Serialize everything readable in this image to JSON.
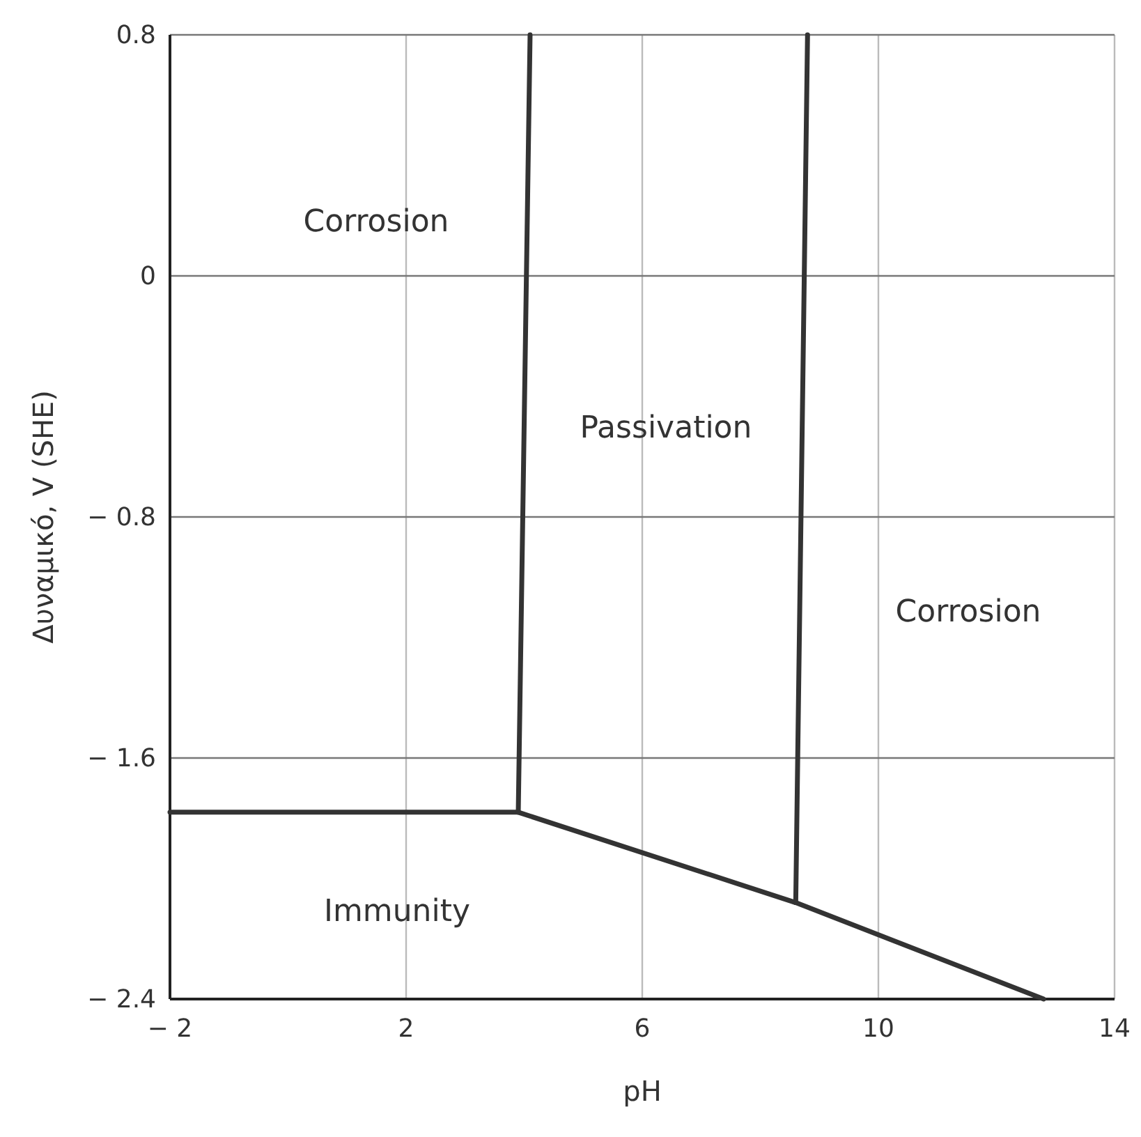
{
  "chart_data": {
    "type": "line",
    "xlabel": "pH",
    "ylabel": "Δυναμικό, V (SHE)",
    "xlim": [
      -2,
      14
    ],
    "ylim": [
      -2.4,
      0.8
    ],
    "xticks": [
      {
        "value": -2,
        "label": "− 2"
      },
      2,
      6,
      10,
      14
    ],
    "yticks": [
      {
        "value": -2.4,
        "label": "− 2.4"
      },
      {
        "value": -1.6,
        "label": "− 1.6"
      },
      {
        "value": -0.8,
        "label": "− 0.8"
      },
      0,
      0.8
    ],
    "grid": true,
    "marker": "none",
    "line_style": "solid",
    "series": [
      {
        "color": "#333333",
        "x": [
          -2,
          3.9,
          8.6,
          12.8
        ],
        "values": [
          -1.78,
          -1.78,
          -2.08,
          -2.4
        ]
      },
      {
        "color": "#333333",
        "x": [
          3.9,
          4.1
        ],
        "values": [
          -1.78,
          0.8
        ]
      },
      {
        "color": "#333333",
        "x": [
          8.6,
          8.8
        ],
        "values": [
          -2.08,
          0.8
        ]
      }
    ],
    "annotations": [
      "Corrosion",
      "Passivation",
      "Corrosion",
      "Immunity"
    ]
  }
}
